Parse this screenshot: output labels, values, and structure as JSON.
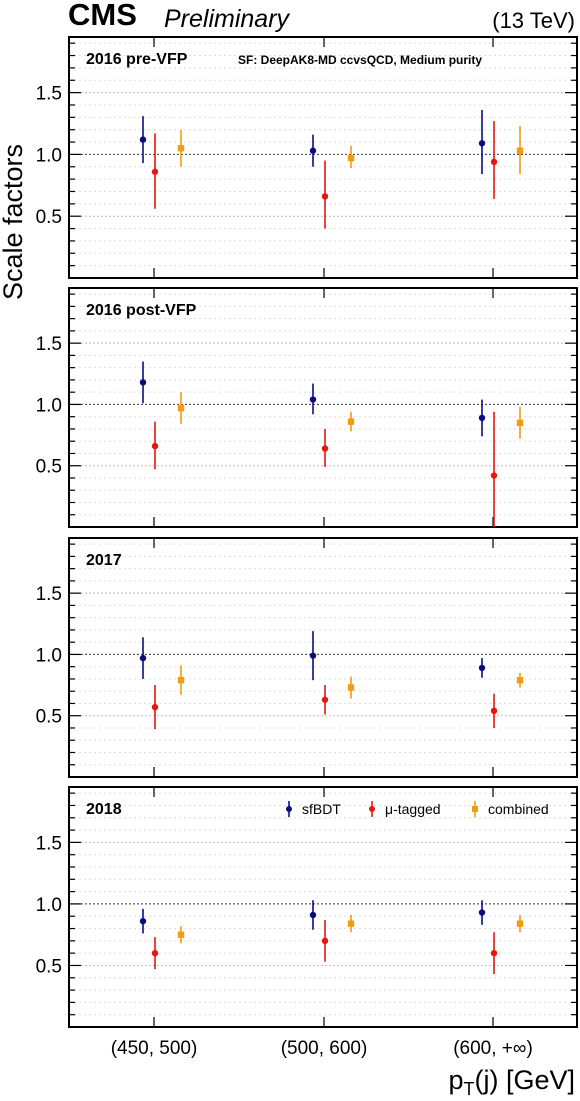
{
  "header": {
    "experiment": "CMS",
    "status": "Preliminary",
    "energy": "(13 TeV)"
  },
  "axes": {
    "ylabel": "Scale factors",
    "xlabel_main": "p",
    "xlabel_sub": "T",
    "xlabel_rest": "(j) [GeV]"
  },
  "colors": {
    "sfBDT": "#0b0b80",
    "mu_tagged": "#e8160c",
    "combined": "#f39c12",
    "frame": "#000000",
    "grid": "#bbbbbb"
  },
  "chart_data": {
    "type": "scatter",
    "categories": [
      "(450, 500)",
      "(500, 600)",
      "(600, +∞)"
    ],
    "ylim": [
      0,
      1.95
    ],
    "yticks": [
      0.5,
      1.0,
      1.5
    ],
    "ytick_labels": [
      "0.5",
      "1.0",
      "1.5"
    ],
    "grid": true,
    "reference_line": 1.0,
    "legend": {
      "placement": "top-right",
      "panel": "2018",
      "entries": [
        "sfBDT",
        "μ-tagged",
        "combined"
      ]
    },
    "annotation": "SF: DeepAK8-MD ccvsQCD,  Medium purity",
    "panels": [
      {
        "name": "2016 pre-VFP",
        "series": [
          {
            "name": "sfBDT",
            "values": [
              1.12,
              1.03,
              1.09
            ],
            "err_up": [
              0.19,
              0.13,
              0.27
            ],
            "err_down": [
              0.19,
              0.13,
              0.25
            ]
          },
          {
            "name": "μ-tagged",
            "values": [
              0.86,
              0.66,
              0.94
            ],
            "err_up": [
              0.31,
              0.29,
              0.33
            ],
            "err_down": [
              0.3,
              0.26,
              0.3
            ]
          },
          {
            "name": "combined",
            "values": [
              1.05,
              0.97,
              1.03
            ],
            "err_up": [
              0.15,
              0.1,
              0.2
            ],
            "err_down": [
              0.15,
              0.08,
              0.19
            ]
          }
        ]
      },
      {
        "name": "2016 post-VFP",
        "series": [
          {
            "name": "sfBDT",
            "values": [
              1.18,
              1.04,
              0.89
            ],
            "err_up": [
              0.17,
              0.13,
              0.15
            ],
            "err_down": [
              0.17,
              0.12,
              0.15
            ]
          },
          {
            "name": "μ-tagged",
            "values": [
              0.66,
              0.64,
              0.42
            ],
            "err_up": [
              0.2,
              0.16,
              0.52
            ],
            "err_down": [
              0.19,
              0.15,
              0.42
            ]
          },
          {
            "name": "combined",
            "values": [
              0.97,
              0.86,
              0.85
            ],
            "err_up": [
              0.13,
              0.08,
              0.13
            ],
            "err_down": [
              0.13,
              0.08,
              0.13
            ]
          }
        ]
      },
      {
        "name": "2017",
        "series": [
          {
            "name": "sfBDT",
            "values": [
              0.97,
              0.99,
              0.89
            ],
            "err_up": [
              0.17,
              0.2,
              0.08
            ],
            "err_down": [
              0.17,
              0.2,
              0.08
            ]
          },
          {
            "name": "μ-tagged",
            "values": [
              0.57,
              0.63,
              0.54
            ],
            "err_up": [
              0.18,
              0.12,
              0.14
            ],
            "err_down": [
              0.18,
              0.12,
              0.14
            ]
          },
          {
            "name": "combined",
            "values": [
              0.79,
              0.73,
              0.79
            ],
            "err_up": [
              0.12,
              0.09,
              0.06
            ],
            "err_down": [
              0.12,
              0.09,
              0.06
            ]
          }
        ]
      },
      {
        "name": "2018",
        "series": [
          {
            "name": "sfBDT",
            "values": [
              0.86,
              0.91,
              0.93
            ],
            "err_up": [
              0.1,
              0.12,
              0.1
            ],
            "err_down": [
              0.1,
              0.12,
              0.1
            ]
          },
          {
            "name": "μ-tagged",
            "values": [
              0.6,
              0.7,
              0.6
            ],
            "err_up": [
              0.13,
              0.17,
              0.17
            ],
            "err_down": [
              0.13,
              0.17,
              0.17
            ]
          },
          {
            "name": "combined",
            "values": [
              0.75,
              0.84,
              0.84
            ],
            "err_up": [
              0.07,
              0.07,
              0.07
            ],
            "err_down": [
              0.07,
              0.07,
              0.07
            ]
          }
        ]
      }
    ]
  }
}
